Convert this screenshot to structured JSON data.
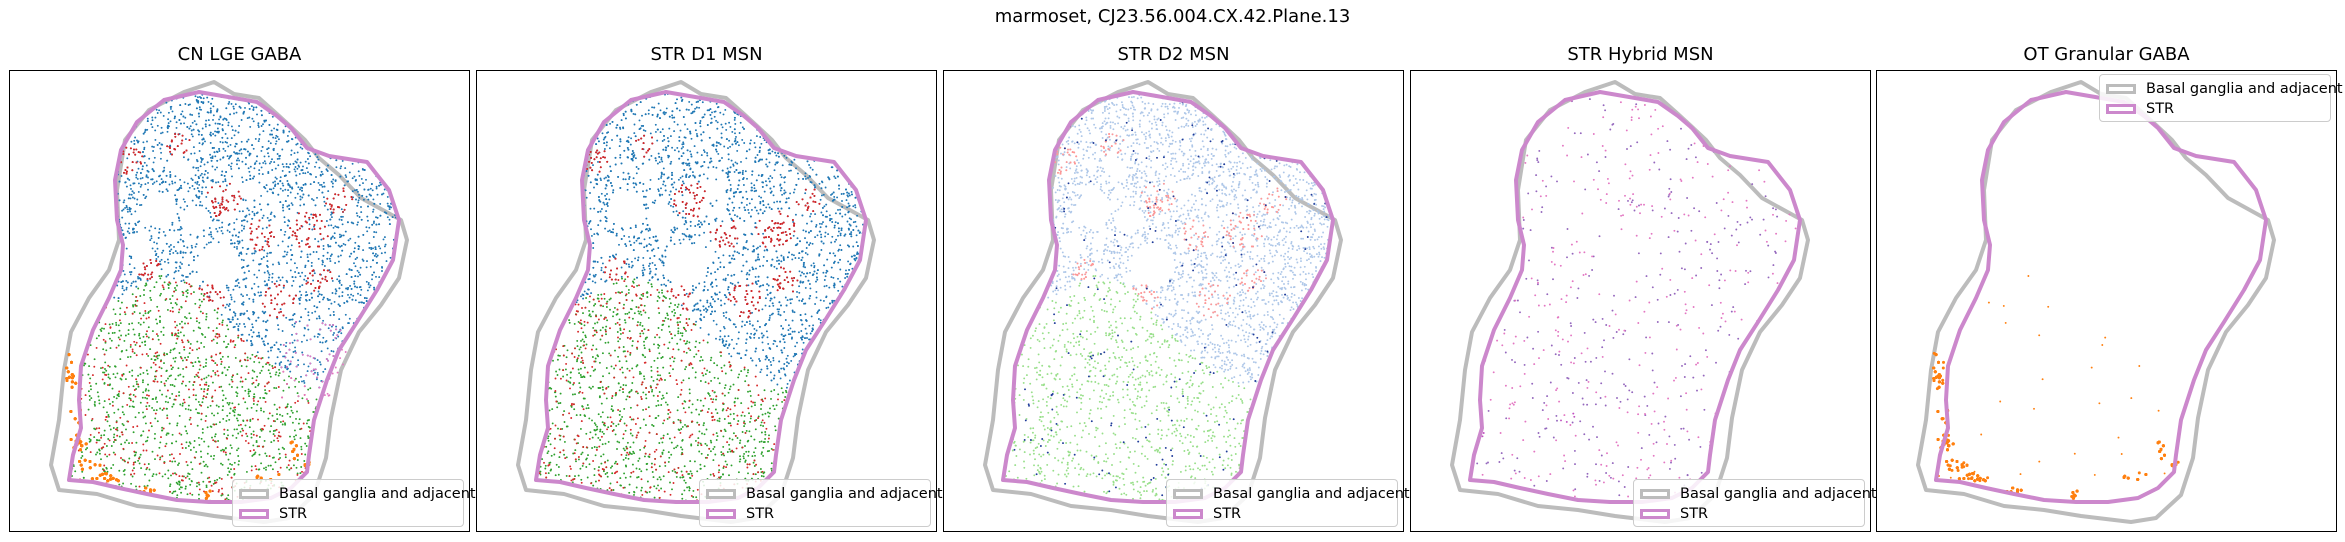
{
  "chart_data": {
    "type": "scatter",
    "title": "marmoset, CJ23.56.004.CX.42.Plane.13",
    "legend_position": "lower-right",
    "grid": false,
    "legend_entries": [
      {
        "label": "Basal ganglia and adjacent",
        "color": "#bcbcbc"
      },
      {
        "label": "STR",
        "color": "#cc88cc"
      }
    ],
    "panels": [
      {
        "title": "CN LGE GABA",
        "legend_position": "lower-right",
        "series": [
          {
            "color": "#1f77b4",
            "density": 1.0,
            "region": "str_upper"
          },
          {
            "color": "#d62728",
            "density": 0.45,
            "region": "str_upper_patches"
          },
          {
            "color": "#2ca02c",
            "density": 0.8,
            "region": "str_lower"
          },
          {
            "color": "#d62728",
            "density": 0.3,
            "region": "str_lower"
          },
          {
            "color": "#ff7f0e",
            "density": 1.0,
            "region": "ot_edge"
          },
          {
            "color": "#e377c2",
            "density": 0.3,
            "region": "border_mid"
          }
        ]
      },
      {
        "title": "STR D1 MSN",
        "legend_position": "lower-right",
        "series": [
          {
            "color": "#1f77b4",
            "density": 1.0,
            "region": "str_upper"
          },
          {
            "color": "#d62728",
            "density": 0.45,
            "region": "str_upper_patches"
          },
          {
            "color": "#2ca02c",
            "density": 0.8,
            "region": "str_lower"
          },
          {
            "color": "#d62728",
            "density": 0.3,
            "region": "str_lower"
          }
        ]
      },
      {
        "title": "STR D2 MSN",
        "legend_position": "lower-right",
        "series": [
          {
            "color": "#aec7e8",
            "density": 0.9,
            "region": "str_upper"
          },
          {
            "color": "#ff9896",
            "density": 0.35,
            "region": "str_upper_patches"
          },
          {
            "color": "#98df8a",
            "density": 0.7,
            "region": "str_lower"
          },
          {
            "color": "#1f3b99",
            "density": 0.08,
            "region": "str_all"
          }
        ]
      },
      {
        "title": "STR Hybrid MSN",
        "legend_position": "lower-right",
        "series": [
          {
            "color": "#9467bd",
            "density": 0.12,
            "region": "str_all"
          },
          {
            "color": "#e377c2",
            "density": 0.12,
            "region": "str_all"
          },
          {
            "color": "#c050c0",
            "density": 0.25,
            "region": "lower_left_clusters"
          }
        ]
      },
      {
        "title": "OT Granular GABA",
        "legend_position": "upper-right",
        "series": [
          {
            "color": "#ff7f0e",
            "density": 1.0,
            "region": "ot_edge"
          },
          {
            "color": "#ff7f0e",
            "density": 0.02,
            "region": "str_lower"
          }
        ]
      }
    ]
  }
}
